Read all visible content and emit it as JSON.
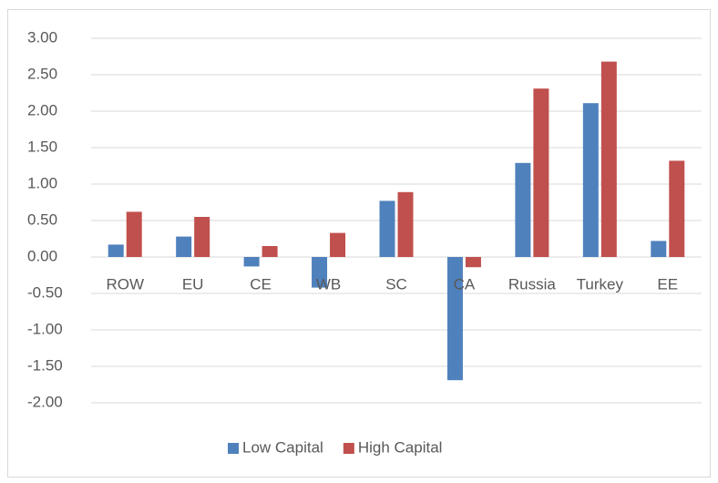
{
  "chart_data": {
    "type": "bar",
    "categories": [
      "ROW",
      "EU",
      "CE",
      "WB",
      "SC",
      "CA",
      "Russia",
      "Turkey",
      "EE"
    ],
    "series": [
      {
        "name": "Low Capital",
        "color": "#4f81bd",
        "values": [
          0.17,
          0.28,
          -0.13,
          -0.42,
          0.77,
          -1.69,
          1.29,
          2.11,
          0.22
        ]
      },
      {
        "name": "High Capital",
        "color": "#c0504d",
        "values": [
          0.62,
          0.55,
          0.15,
          0.33,
          0.89,
          -0.14,
          2.31,
          2.68,
          1.32
        ]
      }
    ],
    "ylim": [
      -2,
      3
    ],
    "yticks": [
      {
        "value": -2,
        "label": "-2.00"
      },
      {
        "value": -1.5,
        "label": "-1.50"
      },
      {
        "value": -1,
        "label": "-1.00"
      },
      {
        "value": -0.5,
        "label": "-0.50"
      },
      {
        "value": 0,
        "label": "0.00"
      },
      {
        "value": 0.5,
        "label": "0.50"
      },
      {
        "value": 1,
        "label": "1.00"
      },
      {
        "value": 1.5,
        "label": "1.50"
      },
      {
        "value": 2,
        "label": "2.00"
      },
      {
        "value": 2.5,
        "label": "2.50"
      },
      {
        "value": 3,
        "label": "3.00"
      }
    ],
    "grid": true,
    "legend": "bottom"
  }
}
